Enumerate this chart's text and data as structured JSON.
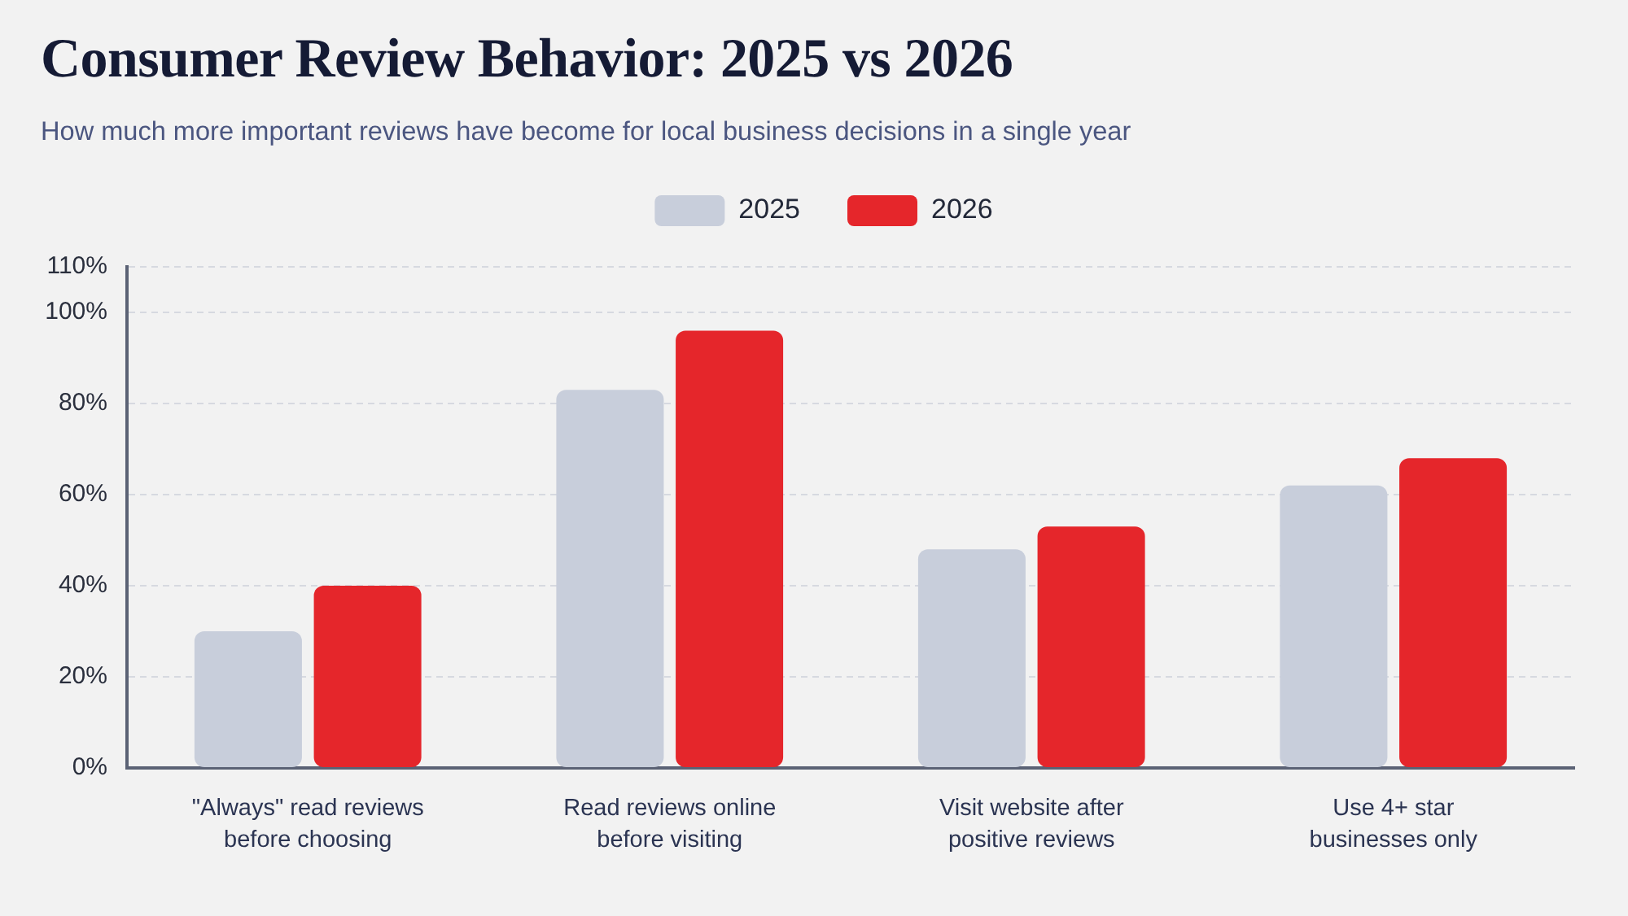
{
  "chart_data": {
    "type": "bar",
    "title": "Consumer Review Behavior: 2025 vs 2026",
    "subtitle": "How much more important reviews have become for local business decisions in a single year",
    "categories": [
      "\"Always\" read reviews before choosing",
      "Read reviews online before visiting",
      "Visit website after positive reviews",
      "Use 4+ star businesses only"
    ],
    "series": [
      {
        "name": "2025",
        "color": "#c8cedb",
        "values": [
          30,
          83,
          48,
          62
        ]
      },
      {
        "name": "2026",
        "color": "#e5262b",
        "values": [
          40,
          96,
          53,
          68
        ]
      }
    ],
    "ylim": [
      0,
      110
    ],
    "yticks": [
      {
        "value": 0,
        "label": "0%"
      },
      {
        "value": 20,
        "label": "20%"
      },
      {
        "value": 40,
        "label": "40%"
      },
      {
        "value": 60,
        "label": "60%"
      },
      {
        "value": 80,
        "label": "80%"
      },
      {
        "value": 100,
        "label": "100%"
      },
      {
        "value": 110,
        "label": "110%"
      }
    ],
    "grid": "y",
    "legend": "top"
  }
}
